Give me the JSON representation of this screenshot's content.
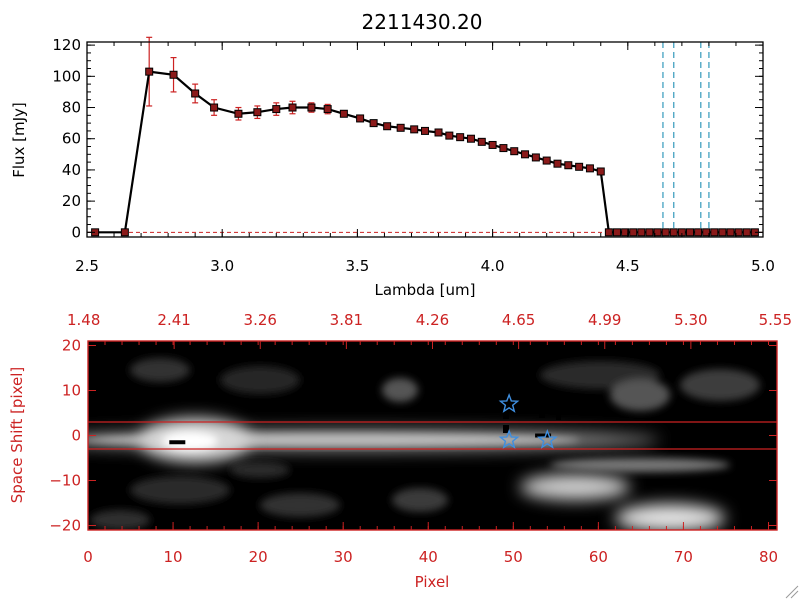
{
  "colors": {
    "axis": "#000000",
    "red": "#cc2222",
    "marker_fill": "#8b1a1a",
    "dashed": "#3399bb",
    "star": "#3f8fe0",
    "background": "#ffffff"
  },
  "chart_data": [
    {
      "type": "line",
      "title": "2211430.20",
      "xlabel": "Lambda [um]",
      "ylabel": "Flux [mJy]",
      "xlim": [
        2.5,
        5.0
      ],
      "ylim": [
        -3,
        122
      ],
      "xticks": [
        {
          "v": 2.5,
          "label": "2.5"
        },
        {
          "v": 3.0,
          "label": "3.0"
        },
        {
          "v": 3.5,
          "label": "3.5"
        },
        {
          "v": 4.0,
          "label": "4.0"
        },
        {
          "v": 4.5,
          "label": "4.5"
        },
        {
          "v": 5.0,
          "label": "5.0"
        }
      ],
      "yticks": [
        {
          "v": 0,
          "label": "0"
        },
        {
          "v": 20,
          "label": "20"
        },
        {
          "v": 40,
          "label": "40"
        },
        {
          "v": 60,
          "label": "60"
        },
        {
          "v": 80,
          "label": "80"
        },
        {
          "v": 100,
          "label": "100"
        },
        {
          "v": 120,
          "label": "120"
        }
      ],
      "series": [
        {
          "name": "flux",
          "x": [
            2.53,
            2.64,
            2.73,
            2.82,
            2.9,
            2.97,
            3.06,
            3.13,
            3.2,
            3.26,
            3.33,
            3.39,
            3.45,
            3.51,
            3.56,
            3.61,
            3.66,
            3.71,
            3.75,
            3.8,
            3.84,
            3.88,
            3.92,
            3.96,
            4.0,
            4.04,
            4.08,
            4.12,
            4.16,
            4.2,
            4.24,
            4.28,
            4.32,
            4.36,
            4.4,
            4.43,
            4.46,
            4.49,
            4.52,
            4.55,
            4.58,
            4.61,
            4.64,
            4.67,
            4.7,
            4.73,
            4.76,
            4.79,
            4.82,
            4.85,
            4.88,
            4.91,
            4.94,
            4.97
          ],
          "y": [
            0,
            0,
            103,
            101,
            89,
            80,
            76,
            77,
            79,
            80,
            80,
            79,
            76,
            73,
            70,
            68,
            67,
            66,
            65,
            64,
            62,
            61,
            60,
            58,
            56,
            54,
            52,
            50,
            48,
            46,
            44,
            43,
            42,
            41,
            39,
            0,
            0,
            0,
            0,
            0,
            0,
            0,
            0,
            0,
            0,
            0,
            0,
            0,
            0,
            0,
            0,
            0,
            0,
            0
          ],
          "err": [
            0,
            0,
            22,
            11,
            6,
            5,
            4,
            4,
            4,
            4,
            3,
            3,
            2,
            2,
            1.5,
            1.5,
            1.5,
            1.5,
            1.5,
            1.5,
            1.5,
            1.5,
            1.5,
            1.5,
            1.5,
            1.5,
            1.5,
            1.5,
            1.5,
            1.5,
            1.5,
            1.5,
            1.5,
            1.5,
            1.5,
            0,
            0,
            0,
            0,
            0,
            0,
            0,
            0,
            0,
            0,
            0,
            0,
            0,
            0,
            0,
            0,
            0,
            0,
            0
          ]
        }
      ],
      "vlines": [
        4.63,
        4.67,
        4.77,
        4.8
      ]
    },
    {
      "type": "heatmap",
      "xlabel": "Pixel",
      "ylabel": "Space Shift [pixel]",
      "xlim": [
        0,
        81
      ],
      "ylim": [
        -21,
        21
      ],
      "xticks": [
        {
          "v": 0,
          "label": "0"
        },
        {
          "v": 10,
          "label": "10"
        },
        {
          "v": 20,
          "label": "20"
        },
        {
          "v": 30,
          "label": "30"
        },
        {
          "v": 40,
          "label": "40"
        },
        {
          "v": 50,
          "label": "50"
        },
        {
          "v": 60,
          "label": "60"
        },
        {
          "v": 70,
          "label": "70"
        },
        {
          "v": 80,
          "label": "80"
        }
      ],
      "yticks": [
        {
          "v": 20,
          "label": "20"
        },
        {
          "v": 10,
          "label": "10"
        },
        {
          "v": 0,
          "label": "0"
        },
        {
          "v": -10,
          "label": "−10"
        },
        {
          "v": -20,
          "label": "−20"
        }
      ],
      "top_axis_labels": [
        "1.48",
        "2.41",
        "3.26",
        "3.81",
        "4.26",
        "4.65",
        "4.99",
        "5.30",
        "5.55"
      ],
      "extraction_window": [
        -3,
        3
      ],
      "stars": [
        {
          "x": 49.5,
          "y": 7
        },
        {
          "x": 49.5,
          "y": -1
        },
        {
          "x": 54.0,
          "y": -1
        }
      ],
      "dark_marks": [
        {
          "x": 10.5,
          "y": -1.5
        },
        {
          "x": 53.5,
          "y": 0
        }
      ]
    }
  ]
}
